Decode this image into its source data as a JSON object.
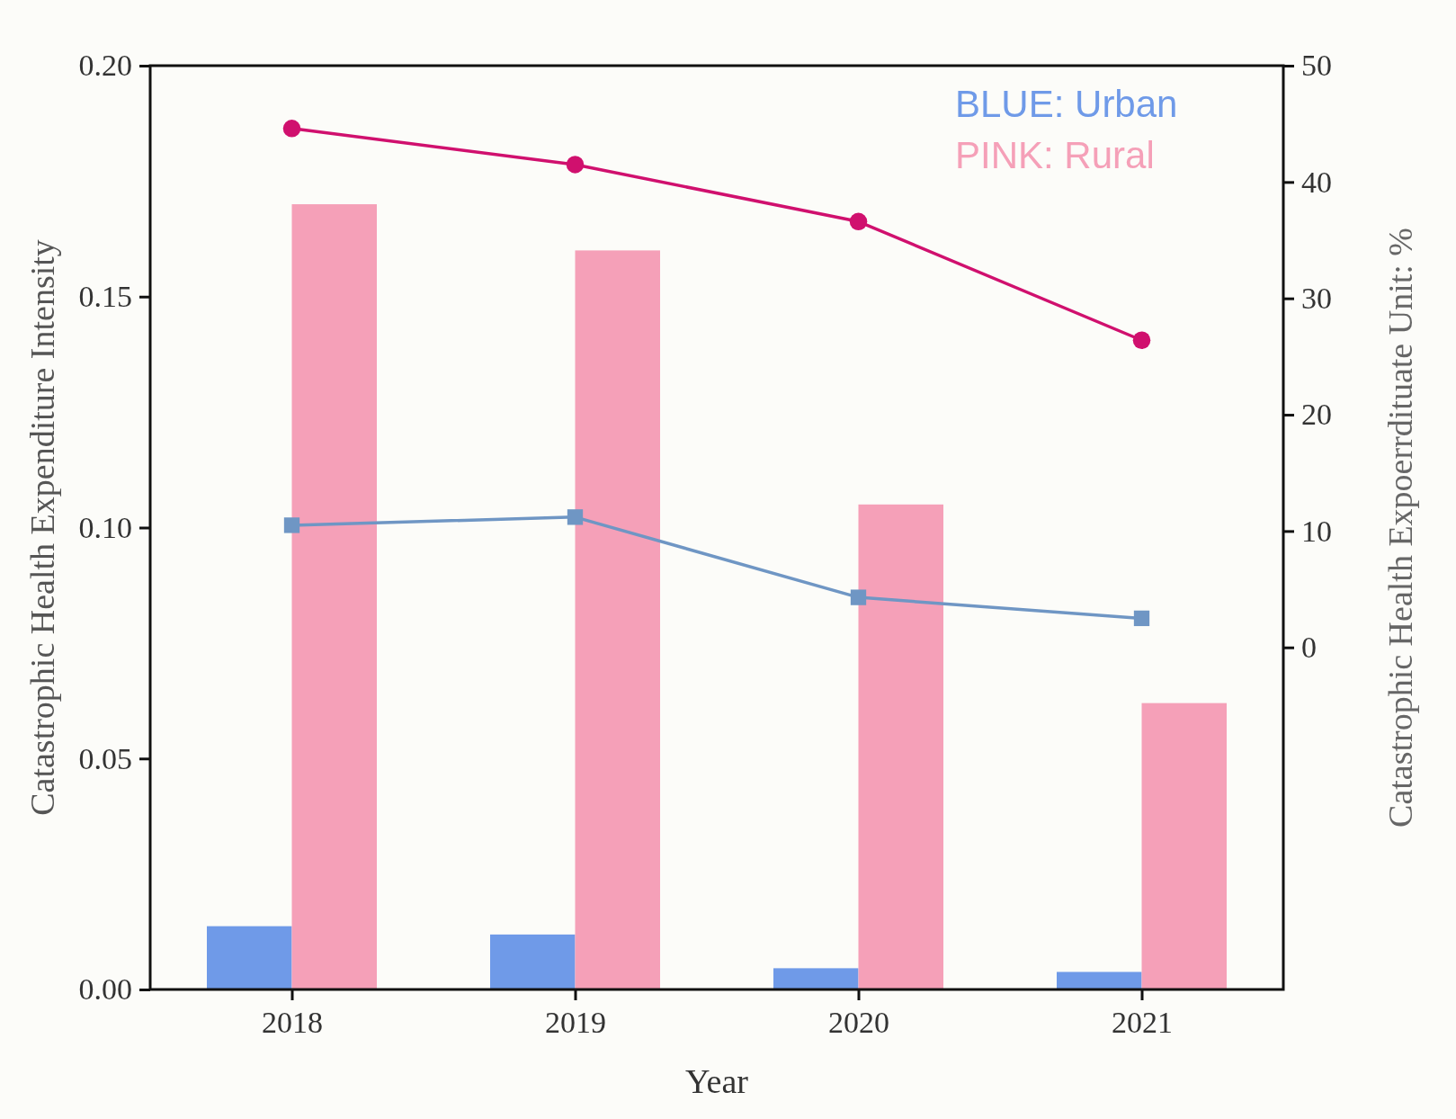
{
  "chart_data": {
    "type": "bar",
    "xlabel": "Year",
    "ylabel": "Catastrophic Health Expenditure Intensity",
    "y2label": "Catastrophic Health Expoerrdituate Unit: %",
    "categories": [
      "2018",
      "2019",
      "2020",
      "2021"
    ],
    "series": [
      {
        "color": "#6f9ae8",
        "values": [
          0.0137,
          0.0119,
          0.0046,
          0.0038
        ]
      },
      {
        "color": "#f5a0b8",
        "values": [
          0.17,
          0.16,
          0.105,
          0.062
        ]
      },
      {
        "type": "line",
        "axis": "y2",
        "color": "#6f96c4",
        "marker": "square",
        "values": [
          10.5,
          11.2,
          4.3,
          2.5
        ]
      },
      {
        "type": "line",
        "axis": "y2",
        "color": "#d0106e",
        "marker": "circle",
        "values": [
          44.6,
          41.5,
          36.6,
          26.4
        ]
      }
    ],
    "ylim": [
      0,
      0.2
    ],
    "yticks": [
      {
        "value": 0,
        "label": "0.00"
      },
      {
        "value": 0.05,
        "label": "0.05"
      },
      {
        "value": 0.1,
        "label": "0.10"
      },
      {
        "value": 0.15,
        "label": "0.15"
      },
      {
        "value": 0.2,
        "label": "0.20"
      }
    ],
    "y2lim": [
      -29.4,
      50
    ],
    "y2ticks": [
      0,
      10,
      20,
      30,
      40,
      50
    ],
    "annotations": [
      "BLUE: Urban",
      "PINK: Rural"
    ],
    "grid": false
  }
}
